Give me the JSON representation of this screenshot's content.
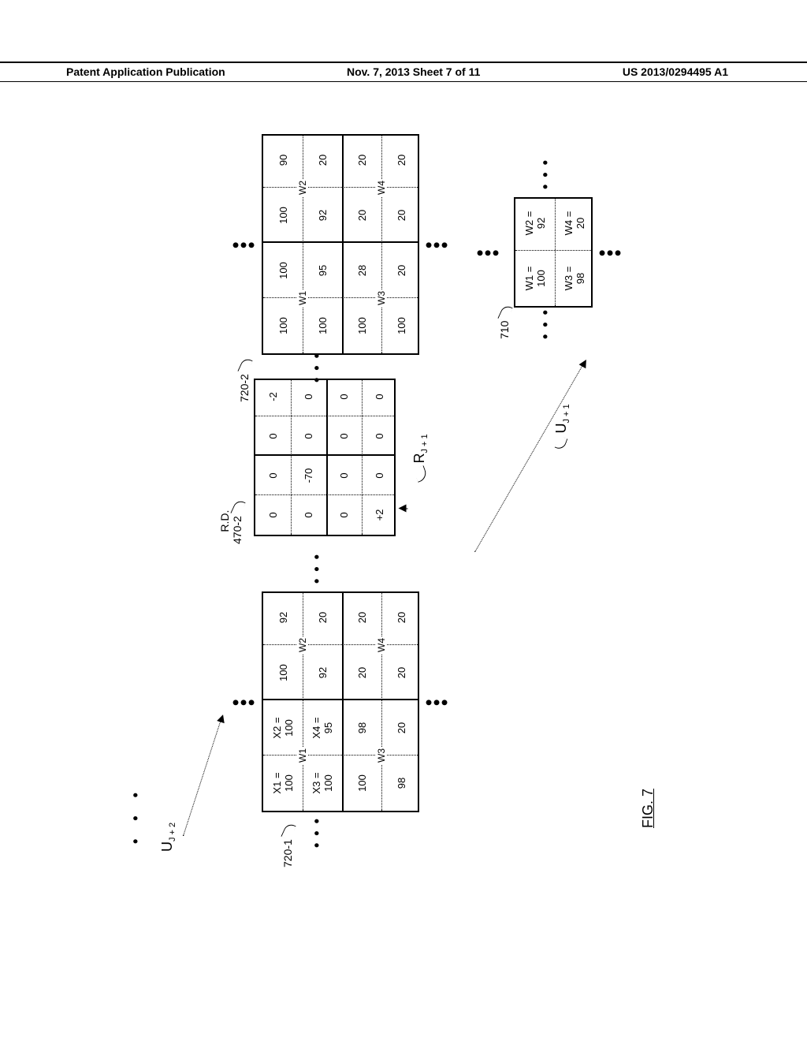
{
  "header": {
    "left": "Patent Application Publication",
    "center": "Nov. 7, 2013   Sheet 7 of 11",
    "right": "US 2013/0294495 A1"
  },
  "figure_label": "FIG. 7",
  "top_dots_label": "• • •",
  "u_label_right": "U",
  "u_label_right_sub": "J + 2",
  "block_720_1": {
    "ref": "720-1",
    "row1": [
      "X1 =\n100",
      "X2 =\n100",
      "100",
      "92"
    ],
    "row2": [
      "X3 =\n100",
      "X4 =\n95",
      "92",
      "20"
    ],
    "row3": [
      "100",
      "98",
      "20",
      "20"
    ],
    "row4": [
      "98",
      "20",
      "20",
      "20"
    ],
    "w_labels": [
      "W1",
      "W2",
      "W3",
      "W4"
    ],
    "outer_w": 280,
    "outer_h": 200
  },
  "block_470_2": {
    "ref_upper": "R.D.",
    "ref": "470-2",
    "row1": [
      "0",
      "0",
      "0",
      "-2"
    ],
    "row2": [
      "0",
      "-70",
      "0",
      "0"
    ],
    "row3": [
      "0",
      "0",
      "0",
      "0"
    ],
    "row4": [
      "+2",
      "0",
      "0",
      "0"
    ],
    "outer_w": 200,
    "outer_h": 180
  },
  "r_label": "R",
  "r_label_sub": "J + 1",
  "block_720_2": {
    "ref": "720-2",
    "row1": [
      "100",
      "100",
      "100",
      "90"
    ],
    "row2": [
      "100",
      "95",
      "92",
      "20"
    ],
    "row3": [
      "100",
      "28",
      "20",
      "20"
    ],
    "row4": [
      "100",
      "20",
      "20",
      "20"
    ],
    "w_labels": [
      "W1",
      "W2",
      "W3",
      "W4"
    ],
    "outer_w": 280,
    "outer_h": 200
  },
  "block_710": {
    "ref": "710",
    "cells": [
      "W1 =\n100",
      "W2 =\n92",
      "W3 =\n98",
      "W4 =\n20"
    ],
    "outer_w": 140,
    "outer_h": 100
  },
  "u_diag_label": "U",
  "u_diag_label_sub": "J + 1",
  "colors": {
    "fg": "#000000",
    "bg": "#ffffff"
  }
}
